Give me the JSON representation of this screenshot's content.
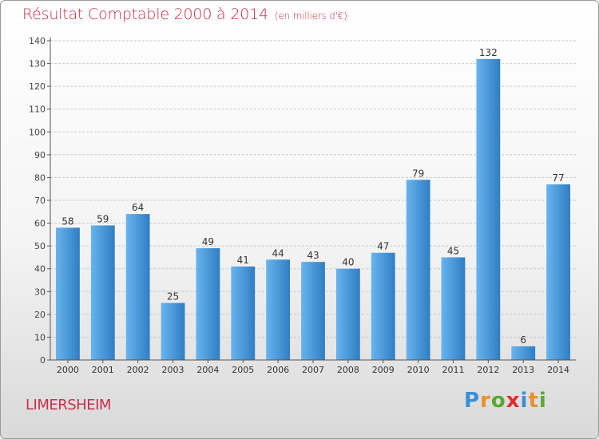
{
  "header": {
    "title": "Résultat Comptable 2000 à 2014",
    "subtitle": "(en milliers d'€)"
  },
  "commune": "LIMERSHEIM",
  "logo": {
    "text": "Proxiti",
    "letter_colors": [
      "#3a8fd4",
      "#e8902a",
      "#5aa832",
      "#e02d2d",
      "#3a8fd4",
      "#e8902a",
      "#5aa832"
    ]
  },
  "colors": {
    "bar_light": "#69b4ee",
    "bar_dark": "#2f7ec3",
    "accent": "#c8304a",
    "grid": "#c9c9c9"
  },
  "chart_data": {
    "type": "bar",
    "categories": [
      "2000",
      "2001",
      "2002",
      "2003",
      "2004",
      "2005",
      "2006",
      "2007",
      "2008",
      "2009",
      "2010",
      "2011",
      "2012",
      "2013",
      "2014"
    ],
    "values": [
      58,
      59,
      64,
      25,
      49,
      41,
      44,
      43,
      40,
      47,
      79,
      45,
      132,
      6,
      77
    ],
    "title": "Résultat Comptable 2000 à 2014",
    "xlabel": "",
    "ylabel": "",
    "ylim": [
      0,
      140
    ],
    "yticks": [
      0,
      10,
      20,
      30,
      40,
      50,
      60,
      70,
      80,
      90,
      100,
      110,
      120,
      130,
      140
    ],
    "grid": true,
    "data_labels": true
  }
}
